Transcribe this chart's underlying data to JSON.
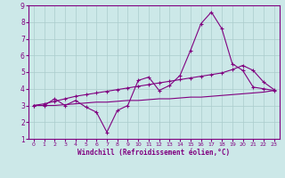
{
  "xlabel": "Windchill (Refroidissement éolien,°C)",
  "background_color": "#cce8e8",
  "line_color": "#800080",
  "grid_color": "#aacccc",
  "xlim": [
    -0.5,
    23.5
  ],
  "ylim": [
    1,
    9
  ],
  "xticks": [
    0,
    1,
    2,
    3,
    4,
    5,
    6,
    7,
    8,
    9,
    10,
    11,
    12,
    13,
    14,
    15,
    16,
    17,
    18,
    19,
    20,
    21,
    22,
    23
  ],
  "yticks": [
    1,
    2,
    3,
    4,
    5,
    6,
    7,
    8,
    9
  ],
  "main_series_x": [
    0,
    1,
    2,
    3,
    4,
    5,
    6,
    7,
    8,
    9,
    10,
    11,
    12,
    13,
    14,
    15,
    16,
    17,
    18,
    19,
    20,
    21,
    22,
    23
  ],
  "main_series_y": [
    3.0,
    3.0,
    3.4,
    3.0,
    3.3,
    2.9,
    2.6,
    1.4,
    2.7,
    3.0,
    4.5,
    4.7,
    3.9,
    4.2,
    4.8,
    6.3,
    7.9,
    8.6,
    7.6,
    5.5,
    5.1,
    4.1,
    4.0,
    3.9
  ],
  "upper_line_x": [
    0,
    1,
    2,
    3,
    4,
    5,
    6,
    7,
    8,
    9,
    10,
    11,
    12,
    13,
    14,
    15,
    16,
    17,
    18,
    19,
    20,
    21,
    22,
    23
  ],
  "upper_line_y": [
    3.0,
    3.1,
    3.25,
    3.4,
    3.55,
    3.65,
    3.75,
    3.85,
    3.95,
    4.05,
    4.15,
    4.25,
    4.35,
    4.45,
    4.55,
    4.65,
    4.75,
    4.85,
    4.95,
    5.15,
    5.4,
    5.1,
    4.4,
    3.95
  ],
  "lower_line_x": [
    0,
    1,
    2,
    3,
    4,
    5,
    6,
    7,
    8,
    9,
    10,
    11,
    12,
    13,
    14,
    15,
    16,
    17,
    18,
    19,
    20,
    21,
    22,
    23
  ],
  "lower_line_y": [
    3.0,
    3.0,
    3.0,
    3.05,
    3.1,
    3.15,
    3.2,
    3.2,
    3.25,
    3.3,
    3.3,
    3.35,
    3.4,
    3.4,
    3.45,
    3.5,
    3.5,
    3.55,
    3.6,
    3.65,
    3.7,
    3.75,
    3.8,
    3.9
  ]
}
